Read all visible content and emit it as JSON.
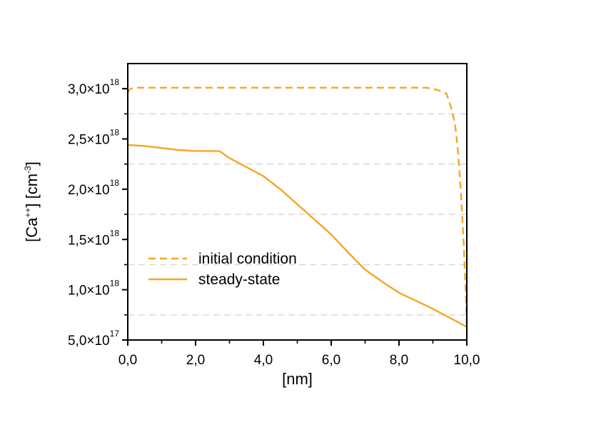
{
  "chart_data": {
    "type": "line",
    "xlabel": "[nm]",
    "ylabel": {
      "prefix": "[Ca",
      "prefix_sup": "++",
      "middle": "] [cm",
      "middle_sup": "-3",
      "suffix": "]"
    },
    "xlim": [
      0,
      10
    ],
    "ylim": [
      5e+17,
      3.25e+18
    ],
    "x_ticks": [
      {
        "value": 0,
        "label": "0,0"
      },
      {
        "value": 2,
        "label": "2,0"
      },
      {
        "value": 4,
        "label": "4,0"
      },
      {
        "value": 6,
        "label": "6,0"
      },
      {
        "value": 8,
        "label": "8,0"
      },
      {
        "value": 10,
        "label": "10,0"
      }
    ],
    "x_minor_ticks": [
      1,
      3,
      5,
      7,
      9
    ],
    "y_ticks": [
      {
        "value": 5e+17,
        "mantissa": "5,0×10",
        "exp": "17"
      },
      {
        "value": 1e+18,
        "mantissa": "1,0×10",
        "exp": "18"
      },
      {
        "value": 1.5e+18,
        "mantissa": "1,5×10",
        "exp": "18"
      },
      {
        "value": 2e+18,
        "mantissa": "2,0×10",
        "exp": "18"
      },
      {
        "value": 2.5e+18,
        "mantissa": "2,5×10",
        "exp": "18"
      },
      {
        "value": 3e+18,
        "mantissa": "3,0×10",
        "exp": "18"
      }
    ],
    "y_minor_ticks": [
      7.5e+17,
      1.25e+18,
      1.75e+18,
      2.25e+18,
      2.75e+18
    ],
    "grid": {
      "horizontal_dashed_at": [
        7.5e+17,
        1.25e+18,
        1.75e+18,
        2.25e+18,
        2.75e+18
      ],
      "color": "#d9d9d9"
    },
    "legend": {
      "position": "center-left"
    },
    "series": [
      {
        "name": "initial condition",
        "style": "dashed",
        "color": "#f5a623",
        "x": [
          0,
          0.05,
          0.1,
          0.2,
          0.5,
          2,
          4,
          6,
          8,
          8.8,
          9.0,
          9.2,
          9.4,
          9.55,
          9.65,
          9.72,
          9.78,
          9.83,
          9.87,
          9.91,
          9.94,
          9.97,
          9.99,
          10.0
        ],
        "y": [
          2.96e+18,
          2.99e+18,
          3e+18,
          3.01e+18,
          3.01e+18,
          3.01e+18,
          3.01e+18,
          3.01e+18,
          3.01e+18,
          3.01e+18,
          3e+18,
          2.98e+18,
          2.95e+18,
          2.8e+18,
          2.65e+18,
          2.45e+18,
          2.2e+18,
          1.95e+18,
          1.7e+18,
          1.45e+18,
          1.2e+18,
          9.5e+17,
          7.5e+17,
          6.4e+17
        ]
      },
      {
        "name": "steady-state",
        "style": "solid",
        "color": "#f5a623",
        "x": [
          0,
          0.5,
          1.0,
          1.5,
          2.0,
          2.5,
          2.7,
          3.0,
          3.5,
          4.0,
          4.5,
          5.0,
          5.5,
          6.0,
          6.5,
          7.0,
          7.5,
          8.0,
          8.5,
          9.0,
          9.5,
          10.0
        ],
        "y": [
          2.44e+18,
          2.43e+18,
          2.41e+18,
          2.39e+18,
          2.38e+18,
          2.38e+18,
          2.38e+18,
          2.31e+18,
          2.22e+18,
          2.13e+18,
          2e+18,
          1.85e+18,
          1.7e+18,
          1.55e+18,
          1.37e+18,
          1.2e+18,
          1.08e+18,
          9.7e+17,
          8.9e+17,
          8.1e+17,
          7.2e+17,
          6.3e+17
        ]
      }
    ]
  }
}
